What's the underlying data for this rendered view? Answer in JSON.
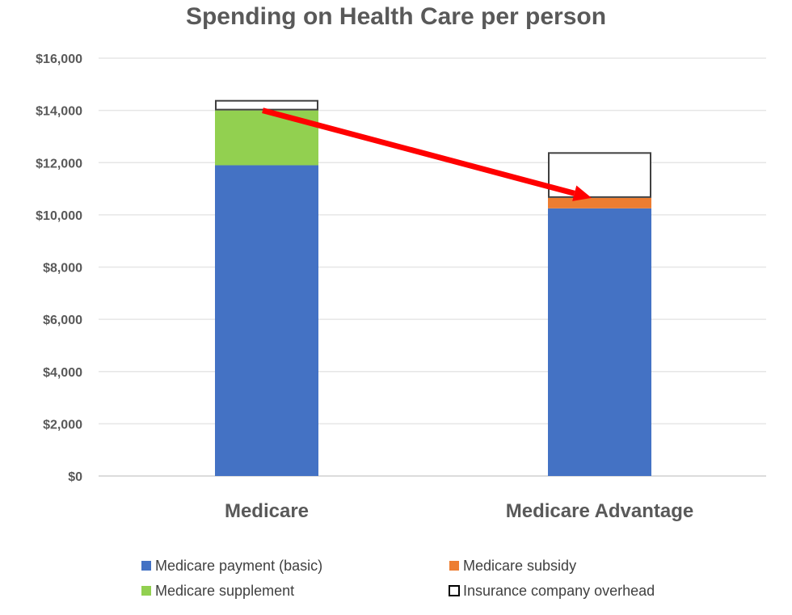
{
  "chart_data": {
    "type": "stacked-bar",
    "title": "Spending on Health Care per person",
    "categories": [
      "Medicare",
      "Medicare Advantage"
    ],
    "series": [
      {
        "name": "Medicare payment (basic)",
        "color": "#4472C4",
        "values": [
          11900,
          10250
        ]
      },
      {
        "name": "Medicare subsidy",
        "color": "#ED7D31",
        "values": [
          0,
          400
        ]
      },
      {
        "name": "Medicare supplement",
        "color": "#92D050",
        "values": [
          2100,
          0
        ]
      },
      {
        "name": "Insurance company overhead",
        "color": "#FFFFFF",
        "values": [
          400,
          1750
        ]
      }
    ],
    "ylim": [
      0,
      16000
    ],
    "yticks": [
      "$0",
      "$2,000",
      "$4,000",
      "$6,000",
      "$8,000",
      "$10,000",
      "$12,000",
      "$14,000",
      "$16,000"
    ],
    "grid": true,
    "legend_placement": "bottom",
    "annotation": {
      "type": "arrow",
      "color": "#FF0000",
      "from": [
        "Medicare",
        14000
      ],
      "to": [
        "Medicare Advantage",
        10650
      ]
    }
  }
}
